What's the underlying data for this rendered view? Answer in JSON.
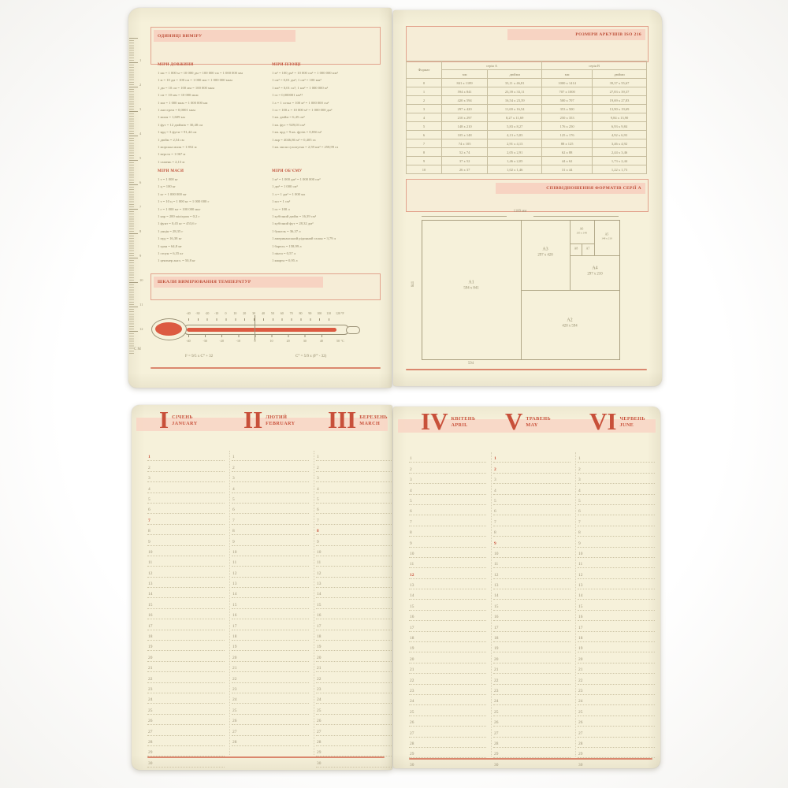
{
  "colors": {
    "accent_red": "#c8503a",
    "pink_fill": "#f7d3c2",
    "pink_border": "#e2a28c",
    "page_cream": "#f6f1da",
    "line_olive": "#c7be9f",
    "text_olive": "#8f8566",
    "thermo_red": "#dc5a41"
  },
  "top_left_page": {
    "units_title": "ОДИНИЦІ ВИМІРУ",
    "sections": [
      {
        "title": "МІРИ ДОВЖИНИ",
        "lines": [
          "1 км = 1 000 м = 10 000 дм = 100 000 см = 1 000 000 мм",
          "1 м = 10 дм = 100 см = 1 000 мм = 1 000 000 мкм",
          "1 дм = 10 см = 100 мм = 100 000 мкм",
          "1 см = 10 мм = 10 000 мкм",
          "1 мм = 1 000 мкм = 1 000 000 нм",
          "1 ангстрем = 0,0001 мкм",
          "1 миля = 1,609 км",
          "1 фут = 12 дюймів = 30,48 см",
          "1 ярд = 3 фути = 91,44 см",
          "1 дюйм = 2,54 см",
          "1 морська миля = 1 852 м",
          "1 верста = 1 067 м",
          "1 сажень = 2,13 м"
        ]
      },
      {
        "title": "МІРИ ПЛОЩІ",
        "lines": [
          "1 м² = 100 дм² = 10 000 см² = 1 000 000 мм²",
          "1 см² = 0,01 дм²; 1 см² = 100 мм²",
          "1 км² = 0,01 га?; 1 км² = 1 000 000 м²",
          "1 га = 0,000001 км²?",
          "1 а = 1 сотка = 100 м² = 1 000 000 см²",
          "1 га = 100 а = 10 000 м² = 1 000 000 дм²",
          "1 кв. дюйм = 6,45 см²",
          "1 кв. фут = 929,03 см²",
          "1 кв. ярд = 9 кв. футів = 0,836 м²",
          "1 акр = 4046,86 м² = 0,405 га",
          "1 кв. миля сухопутна = 2,59 км² = 258,99 га"
        ]
      },
      {
        "title": "МІРИ МАСИ",
        "lines": [
          "1 т = 1 000 кг",
          "1 ц = 100 кг",
          "1 кг = 1 000 000 мг",
          "1 т = 10 ц = 1 000 кг = 1 000 000 г",
          "1 г = 1 000 мг = 100 000 мкг",
          "1 кар = 200 міліграм = 0,2 г",
          "1 фунт = 0,45 кг = 453,6 г",
          "1 унція = 28,35 г",
          "1 пуд = 16,38 кг",
          "1 гран = 64,8 мг",
          "1 стоун = 6,35 кг",
          "1 центнер англ. = 50,8 кг"
        ]
      },
      {
        "title": "МІРИ ОБ'ЄМУ",
        "lines": [
          "1 м³ = 1 000 дм³ = 1 000 000 см³",
          "1 дм³ = 1 000 см³",
          "1 л = 1 дм³ = 1 000 мл",
          "1 мл = 1 см³",
          "1 гл = 100 л",
          "1 кубічний дюйм = 16,39 см³",
          "1 кубічний фут = 28,32 дм³",
          "1 бушель = 36,37 л",
          "1 американський рідинний галон = 3,79 л",
          "1 барель = 158,99 л",
          "1 пінта = 0,57 л",
          "1 кварта = 0,95 л"
        ]
      }
    ],
    "temp_title": "ШКАЛИ ВИМІРЮВАННЯ ТЕМПЕРАТУР",
    "thermometer": {
      "f_values": [
        -40,
        -30,
        -20,
        -10,
        0,
        10,
        20,
        30,
        40,
        50,
        60,
        70,
        80,
        90,
        100,
        110,
        120
      ],
      "c_values": [
        -40,
        -30,
        -20,
        -10,
        0,
        10,
        20,
        30,
        40,
        50
      ],
      "f_unit": "°F",
      "c_unit": "°C"
    },
    "formulas": [
      "F = 9/5 x C° + 32",
      "C° = 5/9 x (F° - 32)"
    ],
    "ruler": {
      "label": "CM",
      "numbers": [
        1,
        2,
        3,
        4,
        5,
        6,
        7,
        8,
        9,
        10,
        11,
        12
      ]
    }
  },
  "top_right_page": {
    "sizes_title": "РОЗМІРИ АРКУШІВ ISO 216",
    "table": {
      "header_format": "Формат",
      "series_a": "серія А",
      "series_b": "серія В",
      "header_units": [
        "мм",
        "дюйми",
        "мм",
        "дюйми"
      ],
      "rows": [
        [
          "0",
          "841 x 1189",
          "33,11 x 46,81",
          "1000 x 1414",
          "39,37 x 55,67"
        ],
        [
          "1",
          "594 x 841",
          "23,39 x 33,11",
          "707 x 1000",
          "27,83 x 39,37"
        ],
        [
          "2",
          "420 x 594",
          "16,54 x 23,39",
          "500 x 707",
          "19,69 x 27,83"
        ],
        [
          "3",
          "297 x 420",
          "11,69 x 16,54",
          "353 x 500",
          "13,90 x 19,69"
        ],
        [
          "4",
          "210 x 297",
          "8,27 x 11,69",
          "250 x 353",
          "9,84 x 13,90"
        ],
        [
          "5",
          "148 x 210",
          "5,83 x 8,27",
          "176 x 250",
          "6,93 x 9,84"
        ],
        [
          "6",
          "105 x 148",
          "4,13 x 5,83",
          "125 x 176",
          "4,92 x 6,93"
        ],
        [
          "7",
          "74 x 105",
          "2,91 x 4,13",
          "88 x 125",
          "3,46 x 4,92"
        ],
        [
          "8",
          "52 x 74",
          "2,05 x 2,91",
          "62 x 88",
          "2,44 x 3,46"
        ],
        [
          "9",
          "37 x 52",
          "1,46 x 2,05",
          "44 x 62",
          "1,73 x 2,44"
        ],
        [
          "10",
          "26 x 37",
          "1,02 x 1,46",
          "31 x 44",
          "1,22 x 1,73"
        ]
      ]
    },
    "formats_title": "СПІВВІДНОШЕННЯ ФОРМАТІВ СЕРІЇ А",
    "diagram": {
      "top_dim": "1189 мм",
      "left_dim": "841",
      "bottom_dim": "594",
      "a1": {
        "id": "A1",
        "size": "594 x 841"
      },
      "a2": {
        "id": "A2",
        "size": "420 x 594"
      },
      "a3": {
        "id": "A3",
        "size": "297 x 420"
      },
      "a4": {
        "id": "A4",
        "size": "297 x 210"
      },
      "a5": {
        "id": "A5",
        "size": "148 x 210"
      },
      "a6": {
        "id": "A6",
        "size": "105 x 148"
      },
      "a7": {
        "id": "A7"
      },
      "a8": {
        "id": "A8"
      }
    }
  },
  "bottom_left_page": {
    "months": [
      {
        "roman": "I",
        "uk": "СІЧЕНЬ",
        "en": "JANUARY",
        "days": 31,
        "red_days": [
          1,
          7
        ]
      },
      {
        "roman": "II",
        "uk": "ЛЮТИЙ",
        "en": "FEBRUARY",
        "days": 28,
        "red_days": []
      },
      {
        "roman": "III",
        "uk": "БЕРЕЗЕНЬ",
        "en": "MARCH",
        "days": 31,
        "red_days": [
          8
        ]
      }
    ]
  },
  "bottom_right_page": {
    "months": [
      {
        "roman": "IV",
        "uk": "КВІТЕНЬ",
        "en": "APRIL",
        "days": 30,
        "red_days": [
          12
        ]
      },
      {
        "roman": "V",
        "uk": "ТРАВЕНЬ",
        "en": "MAY",
        "days": 31,
        "red_days": [
          1,
          2,
          9
        ]
      },
      {
        "roman": "VI",
        "uk": "ЧЕРВЕНЬ",
        "en": "JUNE",
        "days": 30,
        "red_days": []
      }
    ]
  }
}
